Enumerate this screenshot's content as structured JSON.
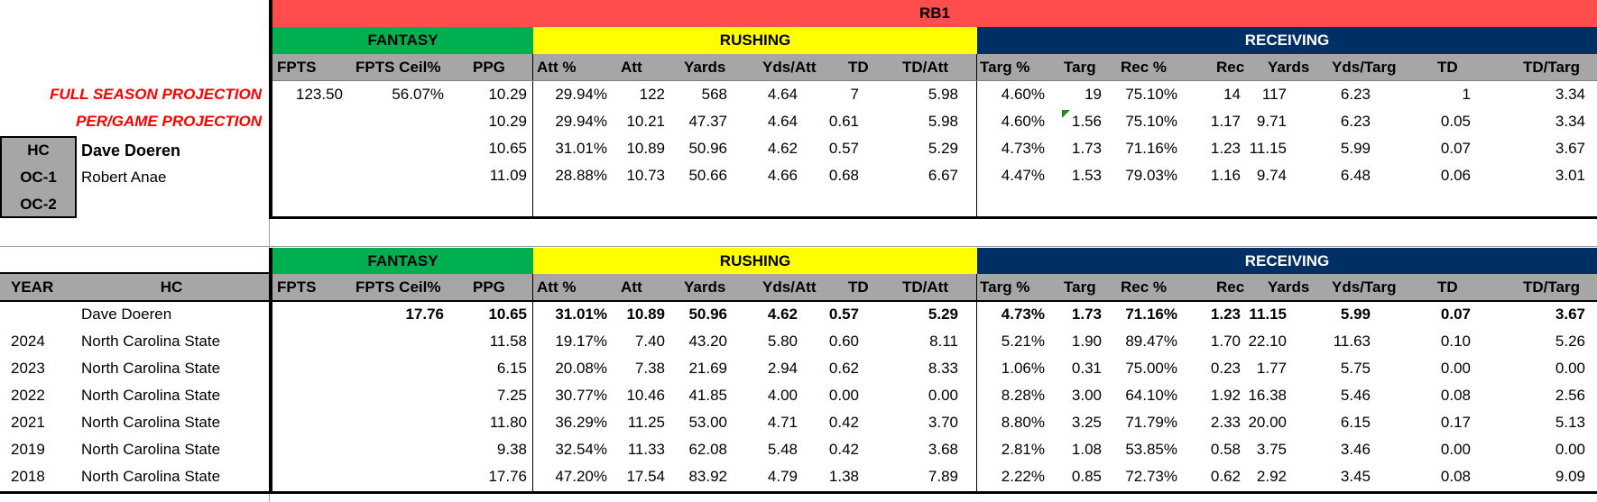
{
  "position_label": "RB1",
  "groups": {
    "fantasy": "FANTASY",
    "rushing": "RUSHING",
    "receiving": "RECEIVING"
  },
  "col_headers": [
    "FPTS",
    "FPTS Ceil%",
    "PPG",
    "Att %",
    "Att",
    "Yards",
    "Yds/Att",
    "TD",
    "TD/Att",
    "Targ %",
    "Targ",
    "Rec %",
    "Rec",
    "Yards",
    "Yds/Targ",
    "TD",
    "TD/Targ"
  ],
  "colors": {
    "rb1": "#ff4c4c",
    "fantasy": "#00b050",
    "rushing": "#ffff00",
    "receiving": "#002f66",
    "header_gray": "#a6a6a6",
    "projection_text": "#ff0000"
  },
  "projection_labels": {
    "full": "FULL SEASON PROJECTION",
    "per_game": "PER/GAME PROJECTION"
  },
  "coaches": [
    {
      "role": "HC",
      "name": "Dave Doeren"
    },
    {
      "role": "OC-1",
      "name": "Robert Anae"
    },
    {
      "role": "OC-2",
      "name": ""
    }
  ],
  "top_rows": [
    [
      "123.50",
      "56.07%",
      "10.29",
      "29.94%",
      "122",
      "568",
      "4.64",
      "7",
      "5.98",
      "4.60%",
      "19",
      "75.10%",
      "14",
      "117",
      "6.23",
      "1",
      "3.34"
    ],
    [
      "",
      "",
      "10.29",
      "29.94%",
      "10.21",
      "47.37",
      "4.64",
      "0.61",
      "5.98",
      "4.60%",
      "1.56",
      "75.10%",
      "1.17",
      "9.71",
      "6.23",
      "0.05",
      "3.34"
    ],
    [
      "",
      "",
      "10.65",
      "31.01%",
      "10.89",
      "50.96",
      "4.62",
      "0.57",
      "5.29",
      "4.73%",
      "1.73",
      "71.16%",
      "1.23",
      "11.15",
      "5.99",
      "0.07",
      "3.67"
    ],
    [
      "",
      "",
      "11.09",
      "28.88%",
      "10.73",
      "50.66",
      "4.66",
      "0.68",
      "6.67",
      "4.47%",
      "1.53",
      "79.03%",
      "1.16",
      "9.74",
      "6.48",
      "0.06",
      "3.01"
    ]
  ],
  "history": {
    "year_header": "YEAR",
    "hc_header": "HC",
    "summary": {
      "year": "",
      "name": "Dave Doeren",
      "values": [
        "",
        "17.76",
        "10.65",
        "31.01%",
        "10.89",
        "50.96",
        "4.62",
        "0.57",
        "5.29",
        "4.73%",
        "1.73",
        "71.16%",
        "1.23",
        "11.15",
        "5.99",
        "0.07",
        "3.67"
      ]
    },
    "rows": [
      {
        "year": "2024",
        "name": "North Carolina State",
        "values": [
          "",
          "",
          "11.58",
          "19.17%",
          "7.40",
          "43.20",
          "5.80",
          "0.60",
          "8.11",
          "5.21%",
          "1.90",
          "89.47%",
          "1.70",
          "22.10",
          "11.63",
          "0.10",
          "5.26"
        ]
      },
      {
        "year": "2023",
        "name": "North Carolina State",
        "values": [
          "",
          "",
          "6.15",
          "20.08%",
          "7.38",
          "21.69",
          "2.94",
          "0.62",
          "8.33",
          "1.06%",
          "0.31",
          "75.00%",
          "0.23",
          "1.77",
          "5.75",
          "0.00",
          "0.00"
        ]
      },
      {
        "year": "2022",
        "name": "North Carolina State",
        "values": [
          "",
          "",
          "7.25",
          "30.77%",
          "10.46",
          "41.85",
          "4.00",
          "0.00",
          "0.00",
          "8.28%",
          "3.00",
          "64.10%",
          "1.92",
          "16.38",
          "5.46",
          "0.08",
          "2.56"
        ]
      },
      {
        "year": "2021",
        "name": "North Carolina State",
        "values": [
          "",
          "",
          "11.80",
          "36.29%",
          "11.25",
          "53.00",
          "4.71",
          "0.42",
          "3.70",
          "8.80%",
          "3.25",
          "71.79%",
          "2.33",
          "20.00",
          "6.15",
          "0.17",
          "5.13"
        ]
      },
      {
        "year": "2019",
        "name": "North Carolina State",
        "values": [
          "",
          "",
          "9.38",
          "32.54%",
          "11.33",
          "62.08",
          "5.48",
          "0.42",
          "3.68",
          "2.81%",
          "1.08",
          "53.85%",
          "0.58",
          "3.75",
          "3.46",
          "0.00",
          "0.00"
        ]
      },
      {
        "year": "2018",
        "name": "North Carolina State",
        "values": [
          "",
          "",
          "17.76",
          "47.20%",
          "17.54",
          "83.92",
          "4.79",
          "1.38",
          "7.89",
          "2.22%",
          "0.85",
          "72.73%",
          "0.62",
          "2.92",
          "3.45",
          "0.08",
          "9.09"
        ]
      }
    ]
  }
}
